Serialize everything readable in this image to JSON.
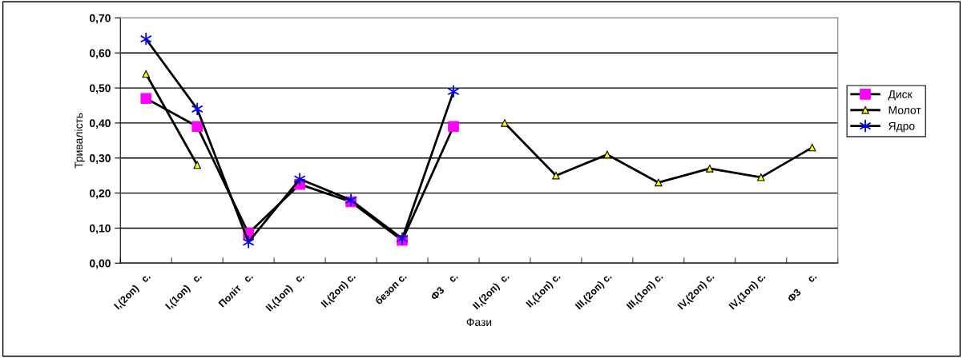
{
  "chart_data": {
    "type": "line",
    "xlabel": "Фази",
    "ylabel": "Тривалість",
    "categories": [
      "I,(2оп)   с.",
      "I,(1оп)   с.",
      "Політ   с.",
      "II,(1оп)   с.",
      "II,(2оп) с.",
      "безоп с.",
      "Ф3    с.",
      "II,(2оп)  с.",
      "II,(1оп) с.",
      "III,(2оп) с.",
      "III,(1оп) с.",
      "IV,(2оп) с.",
      "IV,(1оп) с.",
      "Ф3     с."
    ],
    "series": [
      {
        "name": "Диск",
        "color": "#ff00ff",
        "marker": "square",
        "values": [
          0.47,
          0.39,
          0.085,
          0.225,
          0.175,
          0.065,
          0.39,
          null,
          null,
          null,
          null,
          null,
          null,
          null
        ]
      },
      {
        "name": "Молот",
        "color": "#ffff00",
        "marker": "triangle",
        "values": [
          0.54,
          0.28,
          null,
          null,
          null,
          null,
          null,
          0.4,
          0.25,
          0.31,
          0.23,
          0.27,
          0.245,
          0.33
        ]
      },
      {
        "name": "Ядро",
        "color": "#0000ff",
        "marker": "cross",
        "values": [
          0.64,
          0.44,
          0.06,
          0.24,
          0.18,
          0.07,
          0.49,
          null,
          null,
          null,
          null,
          null,
          null,
          null
        ]
      }
    ],
    "ylim": [
      0,
      0.7
    ],
    "yticks": [
      {
        "value": 0,
        "label": "0,00"
      },
      {
        "value": 0.1,
        "label": "0,10"
      },
      {
        "value": 0.2,
        "label": "0,20"
      },
      {
        "value": 0.3,
        "label": "0,30"
      },
      {
        "value": 0.4,
        "label": "0,40"
      },
      {
        "value": 0.5,
        "label": "0,50"
      },
      {
        "value": 0.6,
        "label": "0,60"
      },
      {
        "value": 0.7,
        "label": "0,70"
      }
    ],
    "grid": "y",
    "legend": "right"
  }
}
